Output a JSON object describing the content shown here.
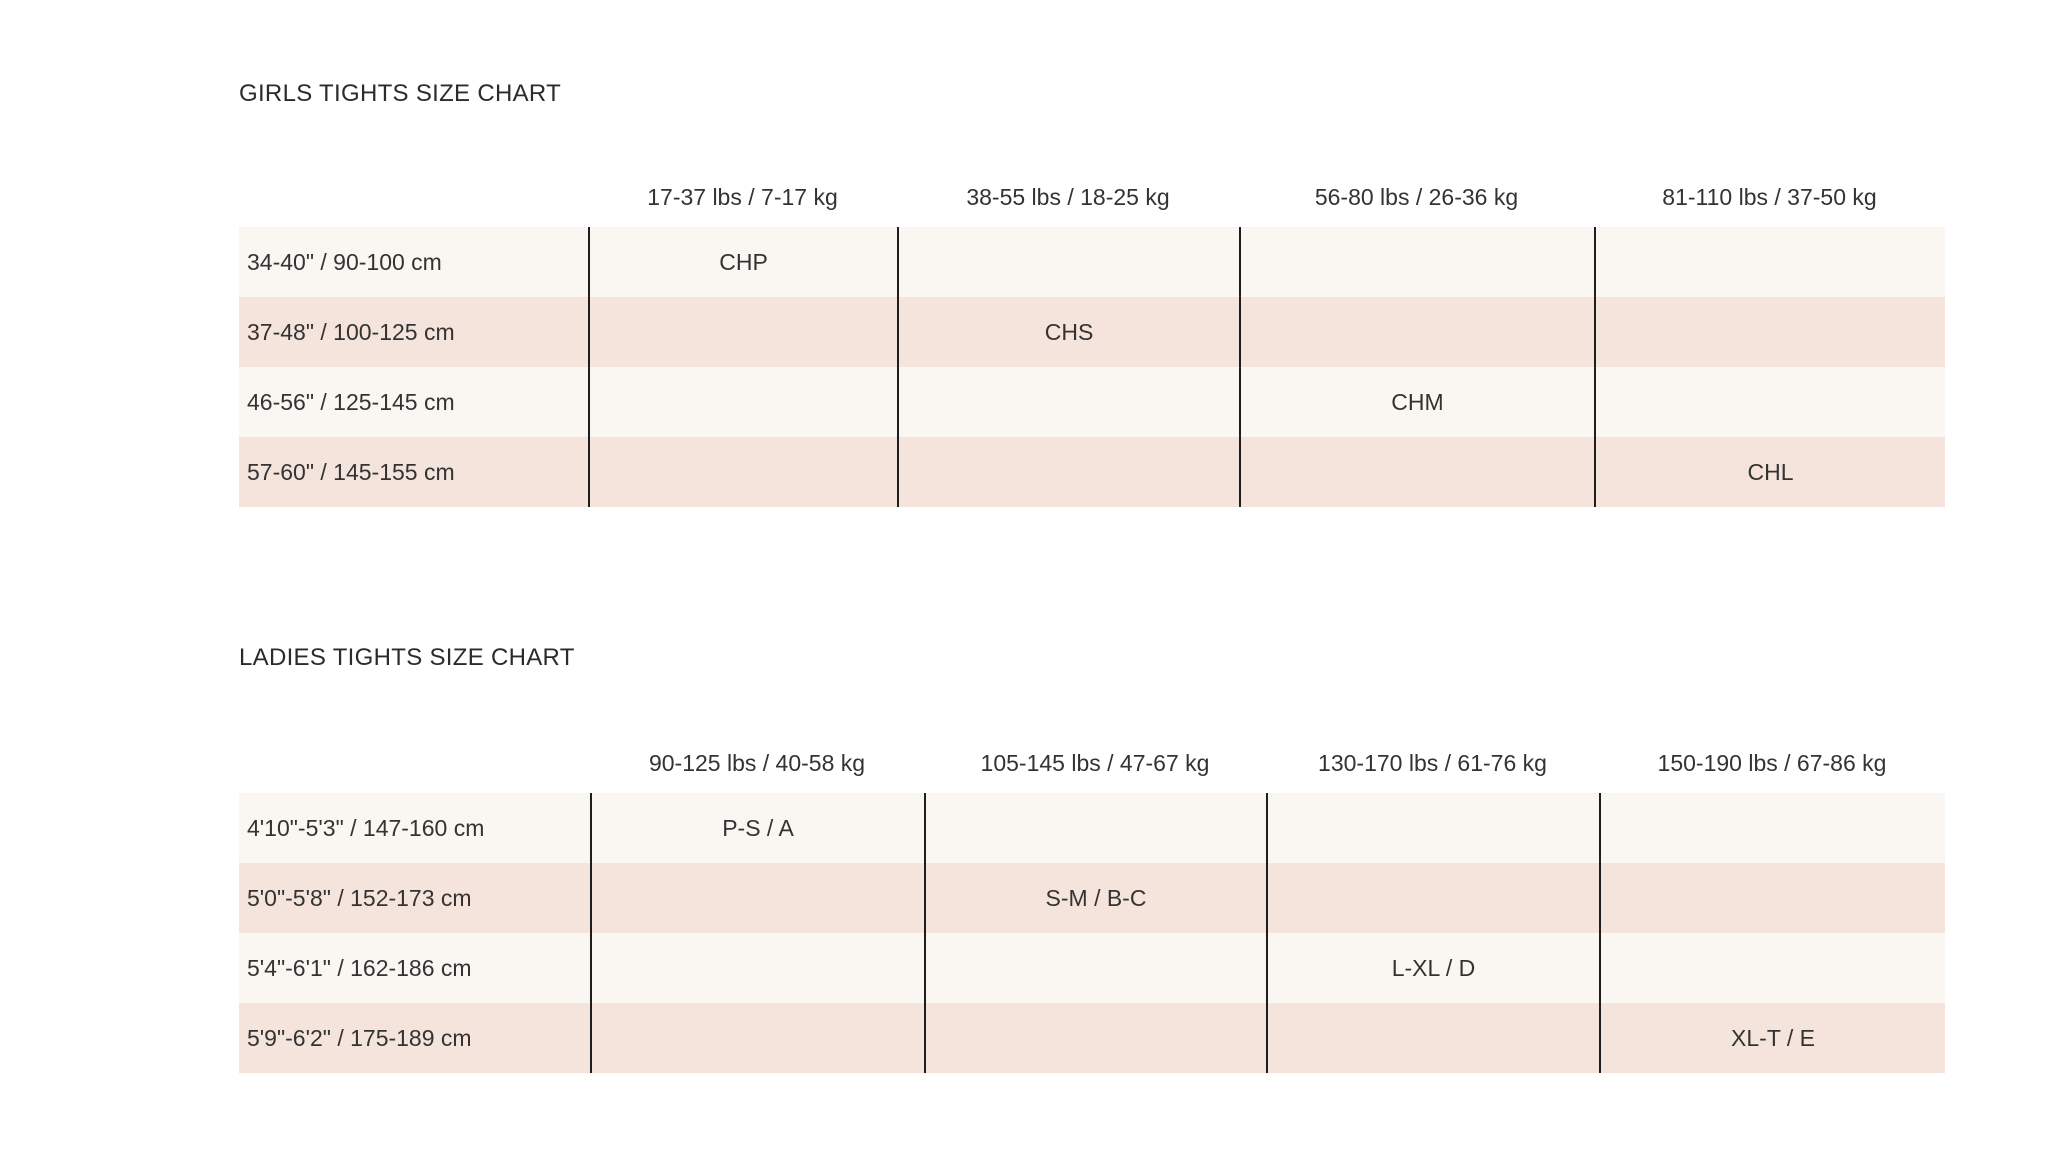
{
  "girls": {
    "title": "GIRLS TIGHTS SIZE CHART",
    "columns": [
      "17-37 lbs / 7-17 kg",
      "38-55 lbs / 18-25 kg",
      "56-80 lbs / 26-36 kg",
      "81-110 lbs / 37-50 kg"
    ],
    "rows": [
      {
        "label": "34-40\" / 90-100 cm",
        "cells": [
          "CHP",
          "",
          "",
          ""
        ]
      },
      {
        "label": "37-48\" / 100-125 cm",
        "cells": [
          "",
          "CHS",
          "",
          ""
        ]
      },
      {
        "label": "46-56\" / 125-145 cm",
        "cells": [
          "",
          "",
          "CHM",
          ""
        ]
      },
      {
        "label": "57-60\" / 145-155 cm",
        "cells": [
          "",
          "",
          "",
          "CHL"
        ]
      }
    ]
  },
  "ladies": {
    "title": "LADIES TIGHTS SIZE CHART",
    "columns": [
      "90-125 lbs / 40-58 kg",
      "105-145 lbs / 47-67 kg",
      "130-170 lbs / 61-76 kg",
      "150-190 lbs / 67-86 kg"
    ],
    "rows": [
      {
        "label": "4'10\"-5'3\" / 147-160 cm",
        "cells": [
          "P-S / A",
          "",
          "",
          ""
        ]
      },
      {
        "label": "5'0\"-5'8\" / 152-173 cm",
        "cells": [
          "",
          "S-M / B-C",
          "",
          ""
        ]
      },
      {
        "label": "5'4\"-6'1\" / 162-186 cm",
        "cells": [
          "",
          "",
          "L-XL / D",
          ""
        ]
      },
      {
        "label": "5'9\"-6'2\" / 175-189 cm",
        "cells": [
          "",
          "",
          "",
          "XL-T / E"
        ]
      }
    ]
  },
  "colors": {
    "row_light": "#faf6f1",
    "row_pink": "#f5e4dc",
    "divider": "#1e1e1e",
    "text": "#333333"
  }
}
